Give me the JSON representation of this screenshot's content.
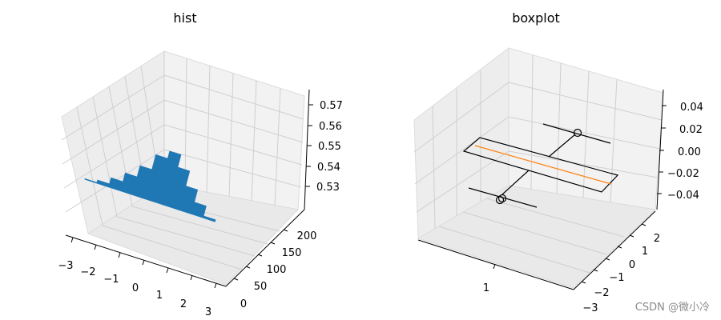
{
  "chart_data": [
    {
      "type": "hist",
      "projection": "3d",
      "title": "hist",
      "x_ticks": [
        "−3",
        "−2",
        "−1",
        "0",
        "1",
        "2",
        "3"
      ],
      "y_ticks": [
        "0",
        "50",
        "100",
        "150",
        "200"
      ],
      "z_ticks": [
        "0.53",
        "0.54",
        "0.55",
        "0.56",
        "0.57"
      ],
      "xlim": [
        -3,
        3
      ],
      "ylim": [
        0,
        220
      ],
      "zlim": [
        0.525,
        0.575
      ],
      "bin_centers": [
        -2.5,
        -2.0,
        -1.5,
        -1.0,
        -0.5,
        0.0,
        0.5,
        1.0,
        1.5,
        2.0,
        2.5
      ],
      "counts": [
        5,
        15,
        40,
        75,
        120,
        180,
        210,
        160,
        100,
        50,
        10
      ],
      "color": "#1f77b4",
      "grid": true
    },
    {
      "type": "boxplot",
      "projection": "3d",
      "title": "boxplot",
      "x_ticks": [
        "1"
      ],
      "y_ticks": [
        "−3",
        "−2",
        "−1",
        "0",
        "1",
        "2"
      ],
      "z_ticks": [
        "−0.04",
        "−0.02",
        "0.00",
        "0.02",
        "0.04"
      ],
      "ylim": [
        -3,
        3
      ],
      "zlim": [
        -0.05,
        0.05
      ],
      "box": {
        "q1": -0.65,
        "median": 0.0,
        "q3": 0.65,
        "whisker_low": -2.5,
        "whisker_high": 2.6,
        "fliers": [
          -2.9,
          -2.95,
          2.95
        ]
      },
      "median_color": "#ff7f0e",
      "grid": true
    }
  ],
  "watermark": "CSDN @微小冷"
}
